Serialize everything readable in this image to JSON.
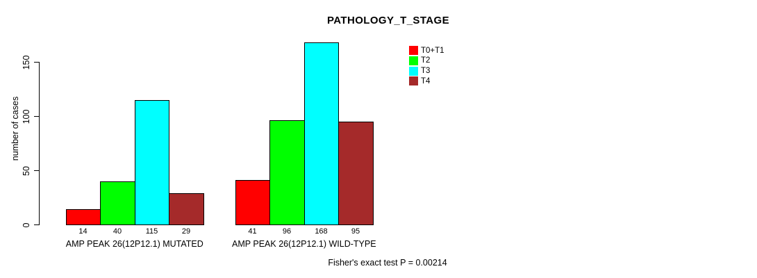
{
  "title": "PATHOLOGY_T_STAGE",
  "chart_data": {
    "type": "bar",
    "title": "PATHOLOGY_T_STAGE",
    "xlabel": "",
    "ylabel": "number of cases",
    "ylim": [
      0,
      170
    ],
    "yticks": [
      0,
      50,
      100,
      150
    ],
    "grid": false,
    "legend_position": "topright",
    "categories": [
      "AMP PEAK 26(12P12.1) MUTATED",
      "AMP PEAK 26(12P12.1) WILD-TYPE"
    ],
    "series": [
      {
        "name": "T0+T1",
        "color": "#ff0000",
        "values": [
          14,
          41
        ]
      },
      {
        "name": "T2",
        "color": "#00ff00",
        "values": [
          40,
          96
        ]
      },
      {
        "name": "T3",
        "color": "#00ffff",
        "values": [
          115,
          168
        ]
      },
      {
        "name": "T4",
        "color": "#a52a2a",
        "values": [
          29,
          95
        ]
      }
    ],
    "bar_value_labels": [
      [
        14,
        40,
        115,
        29
      ],
      [
        41,
        96,
        168,
        95
      ]
    ],
    "annotation": "Fisher's exact test P = 0.00214"
  }
}
